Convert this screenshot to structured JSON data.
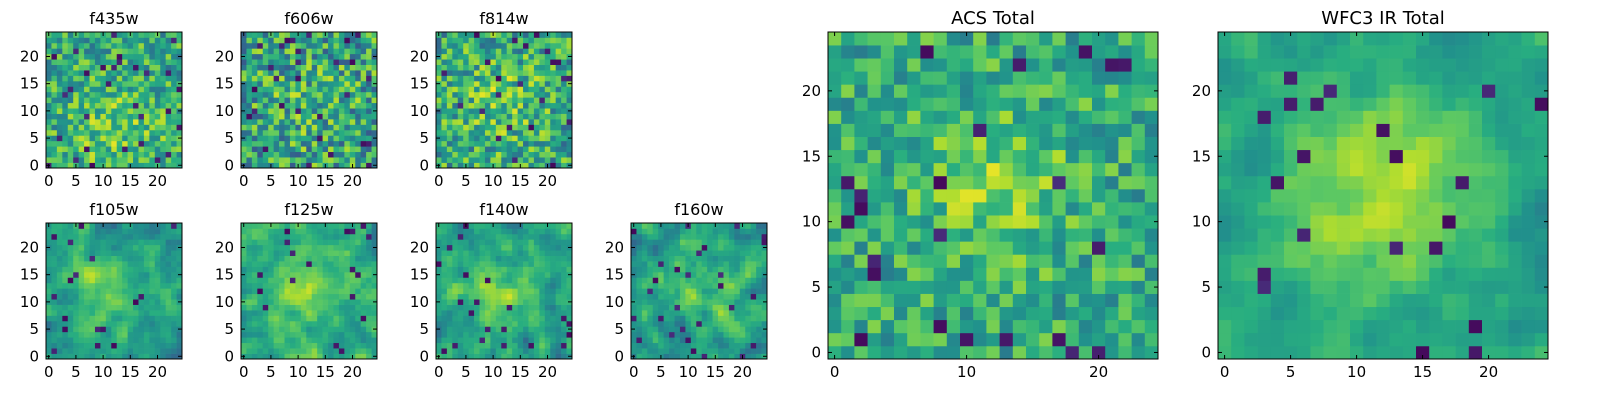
{
  "chart_data": [
    {
      "type": "heatmap",
      "title": "f435w",
      "size": 25,
      "xticks": [
        0,
        5,
        10,
        15,
        20
      ],
      "yticks": [
        0,
        5,
        10,
        15,
        20
      ],
      "colormap": "viridis",
      "seed": 11,
      "smooth": 0,
      "noise": 0.24,
      "bias": 0.06,
      "blob": {
        "x": 12,
        "y": 7,
        "r": 6,
        "amp": 0.14
      }
    },
    {
      "type": "heatmap",
      "title": "f606w",
      "size": 25,
      "xticks": [
        0,
        5,
        10,
        15,
        20
      ],
      "yticks": [
        0,
        5,
        10,
        15,
        20
      ],
      "colormap": "viridis",
      "seed": 23,
      "smooth": 0,
      "noise": 0.3,
      "bias": 0.02,
      "blob": {
        "x": 12,
        "y": 12,
        "r": 6,
        "amp": 0.08
      }
    },
    {
      "type": "heatmap",
      "title": "f814w",
      "size": 25,
      "xticks": [
        0,
        5,
        10,
        15,
        20
      ],
      "yticks": [
        0,
        5,
        10,
        15,
        20
      ],
      "colormap": "viridis",
      "seed": 37,
      "smooth": 0,
      "noise": 0.27,
      "bias": 0.04,
      "blob": {
        "x": 11,
        "y": 12,
        "r": 6,
        "amp": 0.14
      }
    },
    {
      "type": "heatmap",
      "title": "f105w",
      "size": 25,
      "xticks": [
        0,
        5,
        10,
        15,
        20
      ],
      "yticks": [
        0,
        5,
        10,
        15,
        20
      ],
      "colormap": "viridis",
      "seed": 41,
      "smooth": 1,
      "noise": 0.22,
      "bias": 0.0,
      "blob": {
        "x": 11,
        "y": 12,
        "r": 5,
        "amp": 0.22
      }
    },
    {
      "type": "heatmap",
      "title": "f125w",
      "size": 25,
      "xticks": [
        0,
        5,
        10,
        15,
        20
      ],
      "yticks": [
        0,
        5,
        10,
        15,
        20
      ],
      "colormap": "viridis",
      "seed": 53,
      "smooth": 1,
      "noise": 0.22,
      "bias": 0.05,
      "blob": {
        "x": 11,
        "y": 12,
        "r": 5,
        "amp": 0.18
      }
    },
    {
      "type": "heatmap",
      "title": "f140w",
      "size": 25,
      "xticks": [
        0,
        5,
        10,
        15,
        20
      ],
      "yticks": [
        0,
        5,
        10,
        15,
        20
      ],
      "colormap": "viridis",
      "seed": 67,
      "smooth": 1,
      "noise": 0.22,
      "bias": 0.0,
      "blob": {
        "x": 11,
        "y": 12,
        "r": 5,
        "amp": 0.18
      }
    },
    {
      "type": "heatmap",
      "title": "f160w",
      "size": 25,
      "xticks": [
        0,
        5,
        10,
        15,
        20
      ],
      "yticks": [
        0,
        5,
        10,
        15,
        20
      ],
      "colormap": "viridis",
      "seed": 79,
      "smooth": 1,
      "noise": 0.22,
      "bias": 0.0,
      "blob": {
        "x": 12,
        "y": 12,
        "r": 5,
        "amp": 0.18
      }
    },
    {
      "type": "heatmap",
      "title": "ACS Total",
      "size": 25,
      "xticks": [
        0,
        10,
        20
      ],
      "yticks": [
        0,
        5,
        10,
        15,
        20
      ],
      "colormap": "viridis",
      "seed": 97,
      "smooth": 0,
      "noise": 0.2,
      "bias": 0.06,
      "blob": {
        "x": 12,
        "y": 13,
        "r": 4,
        "amp": 0.2
      }
    },
    {
      "type": "heatmap",
      "title": "WFC3 IR Total",
      "size": 25,
      "xticks": [
        0,
        5,
        10,
        15,
        20
      ],
      "yticks": [
        0,
        5,
        10,
        15,
        20
      ],
      "colormap": "viridis",
      "seed": 113,
      "smooth": 1,
      "noise": 0.14,
      "bias": 0.02,
      "blob": {
        "x": 12,
        "y": 12,
        "r": 5,
        "amp": 0.32
      }
    }
  ]
}
